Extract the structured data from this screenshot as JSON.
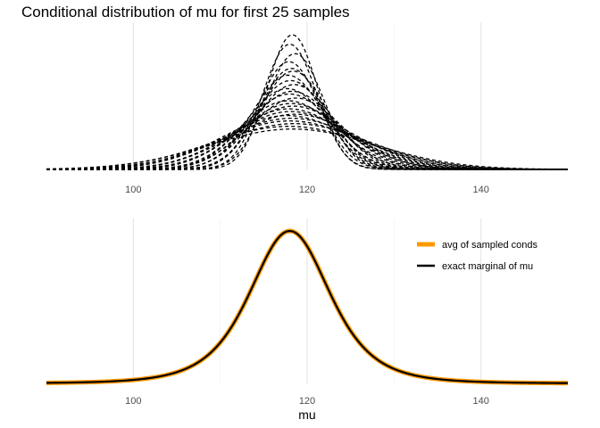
{
  "chart_data": [
    {
      "type": "line",
      "panel": "top",
      "title": "Conditional distribution of mu for first 25 samples",
      "xlabel": "",
      "ylabel": "",
      "xlim": [
        90,
        150
      ],
      "x_ticks": [
        100,
        120,
        140
      ],
      "grid": true,
      "line_style": "dashed",
      "line_color": "#000000",
      "series_count": 25,
      "series": [
        {
          "mean": 118.3,
          "sd": 2.9,
          "peak": 1.0
        },
        {
          "mean": 118.0,
          "sd": 3.1,
          "peak": 0.93
        },
        {
          "mean": 118.6,
          "sd": 3.3,
          "peak": 0.86
        },
        {
          "mean": 117.9,
          "sd": 3.5,
          "peak": 0.8
        },
        {
          "mean": 118.2,
          "sd": 3.7,
          "peak": 0.75
        },
        {
          "mean": 118.4,
          "sd": 3.9,
          "peak": 0.73
        },
        {
          "mean": 117.8,
          "sd": 4.1,
          "peak": 0.7
        },
        {
          "mean": 118.1,
          "sd": 4.3,
          "peak": 0.66
        },
        {
          "mean": 118.5,
          "sd": 4.5,
          "peak": 0.63
        },
        {
          "mean": 117.7,
          "sd": 4.7,
          "peak": 0.6
        },
        {
          "mean": 118.3,
          "sd": 4.9,
          "peak": 0.58
        },
        {
          "mean": 118.0,
          "sd": 5.1,
          "peak": 0.56
        },
        {
          "mean": 118.7,
          "sd": 5.3,
          "peak": 0.53
        },
        {
          "mean": 117.8,
          "sd": 5.6,
          "peak": 0.51
        },
        {
          "mean": 118.2,
          "sd": 5.9,
          "peak": 0.49
        },
        {
          "mean": 118.4,
          "sd": 6.2,
          "peak": 0.47
        },
        {
          "mean": 117.9,
          "sd": 6.5,
          "peak": 0.45
        },
        {
          "mean": 118.1,
          "sd": 6.8,
          "peak": 0.43
        },
        {
          "mean": 118.6,
          "sd": 7.1,
          "peak": 0.41
        },
        {
          "mean": 117.7,
          "sd": 7.4,
          "peak": 0.4
        },
        {
          "mean": 118.2,
          "sd": 7.8,
          "peak": 0.38
        },
        {
          "mean": 118.0,
          "sd": 8.2,
          "peak": 0.36
        },
        {
          "mean": 118.5,
          "sd": 8.6,
          "peak": 0.34
        },
        {
          "mean": 117.9,
          "sd": 9.0,
          "peak": 0.32
        },
        {
          "mean": 118.3,
          "sd": 9.5,
          "peak": 0.3
        }
      ]
    },
    {
      "type": "line",
      "panel": "bottom",
      "xlabel": "mu",
      "ylabel": "",
      "xlim": [
        90,
        150
      ],
      "x_ticks": [
        100,
        120,
        140
      ],
      "grid": true,
      "legend_position": "top-right",
      "series": [
        {
          "name": "avg of sampled conds",
          "color": "#ff9900",
          "mean": 118,
          "scale": 4.8,
          "df": 4
        },
        {
          "name": "exact marginal of mu",
          "color": "#000000",
          "mean": 118,
          "scale": 4.8,
          "df": 4
        }
      ]
    }
  ]
}
